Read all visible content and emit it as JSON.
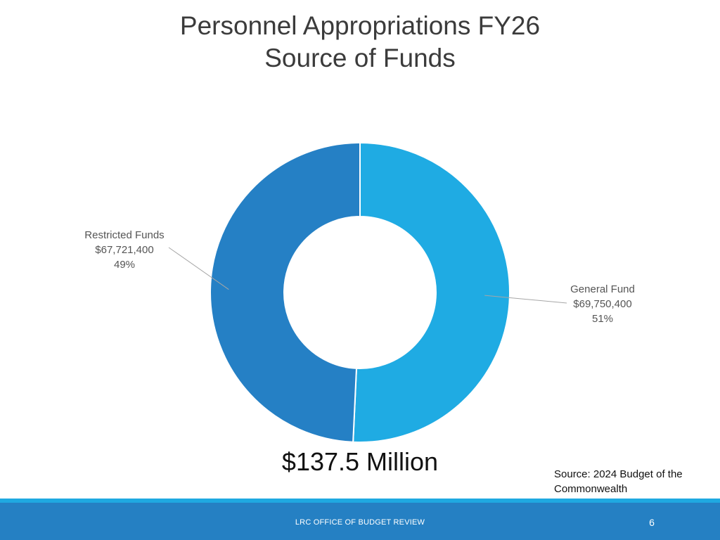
{
  "slide": {
    "title_line1": "Personnel Appropriations FY26",
    "title_line2": "Source of Funds",
    "total": "$137.5 Million",
    "source_line1": "Source: 2024 Budget of the",
    "source_line2": "Commonwealth",
    "footer": "LRC OFFICE OF BUDGET REVIEW",
    "page_number": "6"
  },
  "chart_data": {
    "type": "pie",
    "title": "Personnel Appropriations FY26 Source of Funds",
    "style": "doughnut",
    "series": [
      {
        "name": "General Fund",
        "value": 69750400,
        "value_label": "$69,750,400",
        "percent_label": "51%",
        "color": "#1fabe3"
      },
      {
        "name": "Restricted Funds",
        "value": 67721400,
        "value_label": "$67,721,400",
        "percent_label": "49%",
        "color": "#2580c5"
      }
    ]
  }
}
